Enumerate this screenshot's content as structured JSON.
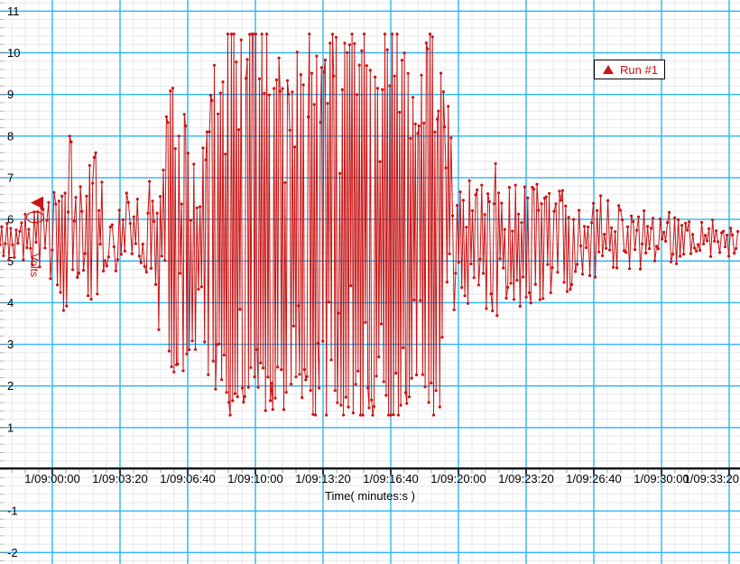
{
  "window": {
    "background": "#ffffff"
  },
  "legend": {
    "label": "Run #1",
    "marker": "triangle-up",
    "color": "#c81414"
  },
  "x_axis": {
    "label": "Time( minutes:s )",
    "tick_labels": [
      "1/09:00:00",
      "1/09:03:20",
      "1/09:06:40",
      "1/09:10:00",
      "1/09:13:20",
      "1/09:16:40",
      "1/09:20:00",
      "1/09:23:20",
      "1/09:26:40",
      "1/09:30:00",
      "1/09:33:20"
    ],
    "tick_seconds": [
      0,
      200,
      400,
      600,
      800,
      1000,
      1200,
      1400,
      1600,
      1800,
      2000
    ]
  },
  "y_axis": {
    "label": "Volts",
    "tick_values": [
      11,
      10,
      9,
      8,
      7,
      6,
      5,
      4,
      3,
      2,
      1,
      -1,
      -2
    ],
    "range": [
      -2,
      11
    ]
  },
  "overlays": {
    "trigger_marker": {
      "shape": "triangle-left",
      "color": "#c81414",
      "value_volts": 6.4
    },
    "cursor_ellipse": {
      "color": "#c81414",
      "center_volts": 6.05
    }
  },
  "chart_data": {
    "type": "line",
    "title": "",
    "xlabel": "Time( minutes:s )",
    "ylabel": "Volts",
    "series_name": "Run #1",
    "series_color": "#c81414",
    "grid_major_color": "#2db5f2",
    "grid_minor_color": "#e8e8e8",
    "axis_line_color": "#000000",
    "ylim": [
      -2,
      11
    ],
    "x_tick_labels": [
      "1/09:00:00",
      "1/09:03:20",
      "1/09:06:40",
      "1/09:10:00",
      "1/09:13:20",
      "1/09:16:40",
      "1/09:20:00",
      "1/09:23:20",
      "1/09:26:40",
      "1/09:30:00",
      "1/09:33:20"
    ],
    "x_tick_seconds": [
      0,
      200,
      400,
      600,
      800,
      1000,
      1200,
      1400,
      1600,
      1800,
      2000
    ],
    "y_tick_values": [
      11,
      10,
      9,
      8,
      7,
      6,
      5,
      4,
      3,
      2,
      1,
      -1,
      -2
    ],
    "visible_time_range_seconds": [
      -155,
      2027
    ],
    "baseline_volts": 5.55,
    "clip_high_volts": 10.45,
    "clip_low_volts": 1.3,
    "seed": 20,
    "peaks_t_volts": [
      [
        51,
        8.0
      ],
      [
        128,
        7.6
      ],
      [
        357,
        9.15
      ],
      [
        477,
        9.7
      ]
    ],
    "envelope_t_hi_lo_volts": [
      [
        -155,
        6.1,
        5.1
      ],
      [
        -101,
        6.2,
        5.0
      ],
      [
        -48,
        6.3,
        4.9
      ],
      [
        -8,
        6.6,
        4.6
      ],
      [
        11,
        6.9,
        4.4
      ],
      [
        32,
        7.6,
        3.9
      ],
      [
        51,
        8.0,
        3.6
      ],
      [
        72,
        7.2,
        4.2
      ],
      [
        99,
        7.3,
        4.0
      ],
      [
        128,
        7.6,
        3.8
      ],
      [
        152,
        6.8,
        4.4
      ],
      [
        179,
        6.5,
        4.7
      ],
      [
        219,
        6.6,
        4.6
      ],
      [
        259,
        6.6,
        4.5
      ],
      [
        285,
        6.9,
        4.3
      ],
      [
        312,
        7.6,
        3.4
      ],
      [
        339,
        8.6,
        2.6
      ],
      [
        357,
        9.15,
        2.1
      ],
      [
        379,
        8.3,
        2.4
      ],
      [
        400,
        8.6,
        2.4
      ],
      [
        419,
        7.8,
        3.0
      ],
      [
        437,
        8.2,
        2.6
      ],
      [
        459,
        8.8,
        2.2
      ],
      [
        477,
        9.7,
        1.8
      ],
      [
        496,
        9.4,
        1.6
      ],
      [
        512,
        10.45,
        1.3
      ],
      [
        552,
        10.45,
        1.3
      ],
      [
        592,
        10.45,
        1.3
      ],
      [
        645,
        10.45,
        1.3
      ],
      [
        677,
        9.9,
        1.5
      ],
      [
        699,
        9.3,
        1.8
      ],
      [
        725,
        10.45,
        1.3
      ],
      [
        792,
        10.45,
        1.3
      ],
      [
        872,
        10.45,
        1.3
      ],
      [
        952,
        10.45,
        1.3
      ],
      [
        1027,
        10.45,
        1.3
      ],
      [
        1051,
        9.6,
        1.8
      ],
      [
        1072,
        9.0,
        2.4
      ],
      [
        1093,
        9.4,
        2.0
      ],
      [
        1117,
        10.45,
        1.3
      ],
      [
        1139,
        10.45,
        1.3
      ],
      [
        1160,
        9.2,
        2.2
      ],
      [
        1179,
        8.2,
        3.0
      ],
      [
        1200,
        7.6,
        3.4
      ],
      [
        1227,
        7.2,
        3.7
      ],
      [
        1259,
        7.3,
        3.6
      ],
      [
        1285,
        7.6,
        3.5
      ],
      [
        1312,
        7.2,
        3.8
      ],
      [
        1339,
        7.0,
        3.9
      ],
      [
        1365,
        7.2,
        3.8
      ],
      [
        1392,
        6.9,
        4.1
      ],
      [
        1424,
        7.0,
        4.0
      ],
      [
        1459,
        6.9,
        4.1
      ],
      [
        1485,
        6.6,
        4.4
      ],
      [
        1512,
        6.8,
        4.2
      ],
      [
        1552,
        6.6,
        4.4
      ],
      [
        1584,
        6.5,
        4.6
      ],
      [
        1619,
        6.7,
        4.4
      ],
      [
        1659,
        6.4,
        4.7
      ],
      [
        1699,
        6.5,
        4.7
      ],
      [
        1739,
        6.3,
        4.8
      ],
      [
        1779,
        6.2,
        4.9
      ],
      [
        1819,
        6.3,
        4.9
      ],
      [
        1859,
        6.1,
        5.0
      ],
      [
        1899,
        6.0,
        5.1
      ],
      [
        1939,
        6.1,
        5.1
      ],
      [
        1979,
        6.0,
        5.1
      ],
      [
        2027,
        6.0,
        5.1
      ]
    ]
  }
}
